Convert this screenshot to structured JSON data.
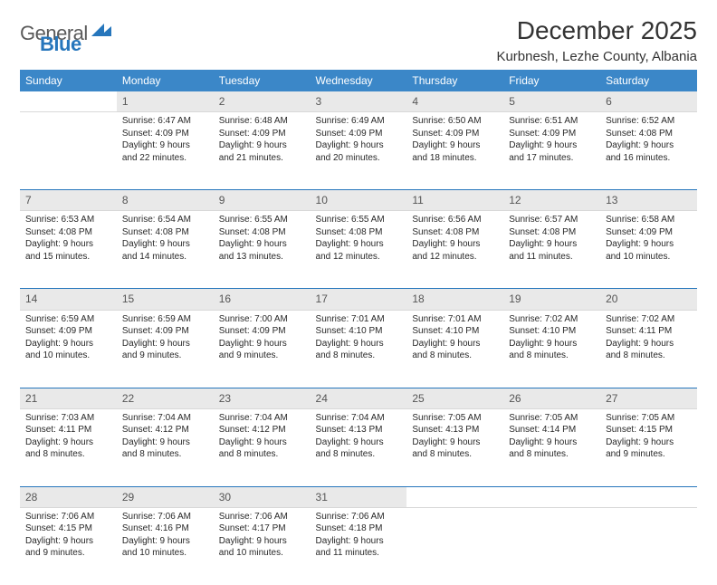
{
  "brand": {
    "word1": "General",
    "word2": "Blue"
  },
  "title": "December 2025",
  "location": "Kurbnesh, Lezhe County, Albania",
  "colors": {
    "header_bg": "#3b87c8",
    "header_text": "#ffffff",
    "accent": "#2676bc",
    "daynum_bg": "#e9e9e9",
    "text": "#282828"
  },
  "day_headers": [
    "Sunday",
    "Monday",
    "Tuesday",
    "Wednesday",
    "Thursday",
    "Friday",
    "Saturday"
  ],
  "weeks": [
    [
      null,
      {
        "n": "1",
        "sr": "6:47 AM",
        "ss": "4:09 PM",
        "d1": "9 hours",
        "d2": "and 22 minutes."
      },
      {
        "n": "2",
        "sr": "6:48 AM",
        "ss": "4:09 PM",
        "d1": "9 hours",
        "d2": "and 21 minutes."
      },
      {
        "n": "3",
        "sr": "6:49 AM",
        "ss": "4:09 PM",
        "d1": "9 hours",
        "d2": "and 20 minutes."
      },
      {
        "n": "4",
        "sr": "6:50 AM",
        "ss": "4:09 PM",
        "d1": "9 hours",
        "d2": "and 18 minutes."
      },
      {
        "n": "5",
        "sr": "6:51 AM",
        "ss": "4:09 PM",
        "d1": "9 hours",
        "d2": "and 17 minutes."
      },
      {
        "n": "6",
        "sr": "6:52 AM",
        "ss": "4:08 PM",
        "d1": "9 hours",
        "d2": "and 16 minutes."
      }
    ],
    [
      {
        "n": "7",
        "sr": "6:53 AM",
        "ss": "4:08 PM",
        "d1": "9 hours",
        "d2": "and 15 minutes."
      },
      {
        "n": "8",
        "sr": "6:54 AM",
        "ss": "4:08 PM",
        "d1": "9 hours",
        "d2": "and 14 minutes."
      },
      {
        "n": "9",
        "sr": "6:55 AM",
        "ss": "4:08 PM",
        "d1": "9 hours",
        "d2": "and 13 minutes."
      },
      {
        "n": "10",
        "sr": "6:55 AM",
        "ss": "4:08 PM",
        "d1": "9 hours",
        "d2": "and 12 minutes."
      },
      {
        "n": "11",
        "sr": "6:56 AM",
        "ss": "4:08 PM",
        "d1": "9 hours",
        "d2": "and 12 minutes."
      },
      {
        "n": "12",
        "sr": "6:57 AM",
        "ss": "4:08 PM",
        "d1": "9 hours",
        "d2": "and 11 minutes."
      },
      {
        "n": "13",
        "sr": "6:58 AM",
        "ss": "4:09 PM",
        "d1": "9 hours",
        "d2": "and 10 minutes."
      }
    ],
    [
      {
        "n": "14",
        "sr": "6:59 AM",
        "ss": "4:09 PM",
        "d1": "9 hours",
        "d2": "and 10 minutes."
      },
      {
        "n": "15",
        "sr": "6:59 AM",
        "ss": "4:09 PM",
        "d1": "9 hours",
        "d2": "and 9 minutes."
      },
      {
        "n": "16",
        "sr": "7:00 AM",
        "ss": "4:09 PM",
        "d1": "9 hours",
        "d2": "and 9 minutes."
      },
      {
        "n": "17",
        "sr": "7:01 AM",
        "ss": "4:10 PM",
        "d1": "9 hours",
        "d2": "and 8 minutes."
      },
      {
        "n": "18",
        "sr": "7:01 AM",
        "ss": "4:10 PM",
        "d1": "9 hours",
        "d2": "and 8 minutes."
      },
      {
        "n": "19",
        "sr": "7:02 AM",
        "ss": "4:10 PM",
        "d1": "9 hours",
        "d2": "and 8 minutes."
      },
      {
        "n": "20",
        "sr": "7:02 AM",
        "ss": "4:11 PM",
        "d1": "9 hours",
        "d2": "and 8 minutes."
      }
    ],
    [
      {
        "n": "21",
        "sr": "7:03 AM",
        "ss": "4:11 PM",
        "d1": "9 hours",
        "d2": "and 8 minutes."
      },
      {
        "n": "22",
        "sr": "7:04 AM",
        "ss": "4:12 PM",
        "d1": "9 hours",
        "d2": "and 8 minutes."
      },
      {
        "n": "23",
        "sr": "7:04 AM",
        "ss": "4:12 PM",
        "d1": "9 hours",
        "d2": "and 8 minutes."
      },
      {
        "n": "24",
        "sr": "7:04 AM",
        "ss": "4:13 PM",
        "d1": "9 hours",
        "d2": "and 8 minutes."
      },
      {
        "n": "25",
        "sr": "7:05 AM",
        "ss": "4:13 PM",
        "d1": "9 hours",
        "d2": "and 8 minutes."
      },
      {
        "n": "26",
        "sr": "7:05 AM",
        "ss": "4:14 PM",
        "d1": "9 hours",
        "d2": "and 8 minutes."
      },
      {
        "n": "27",
        "sr": "7:05 AM",
        "ss": "4:15 PM",
        "d1": "9 hours",
        "d2": "and 9 minutes."
      }
    ],
    [
      {
        "n": "28",
        "sr": "7:06 AM",
        "ss": "4:15 PM",
        "d1": "9 hours",
        "d2": "and 9 minutes."
      },
      {
        "n": "29",
        "sr": "7:06 AM",
        "ss": "4:16 PM",
        "d1": "9 hours",
        "d2": "and 10 minutes."
      },
      {
        "n": "30",
        "sr": "7:06 AM",
        "ss": "4:17 PM",
        "d1": "9 hours",
        "d2": "and 10 minutes."
      },
      {
        "n": "31",
        "sr": "7:06 AM",
        "ss": "4:18 PM",
        "d1": "9 hours",
        "d2": "and 11 minutes."
      },
      null,
      null,
      null
    ]
  ],
  "labels": {
    "sunrise": "Sunrise:",
    "sunset": "Sunset:",
    "daylight": "Daylight:"
  }
}
